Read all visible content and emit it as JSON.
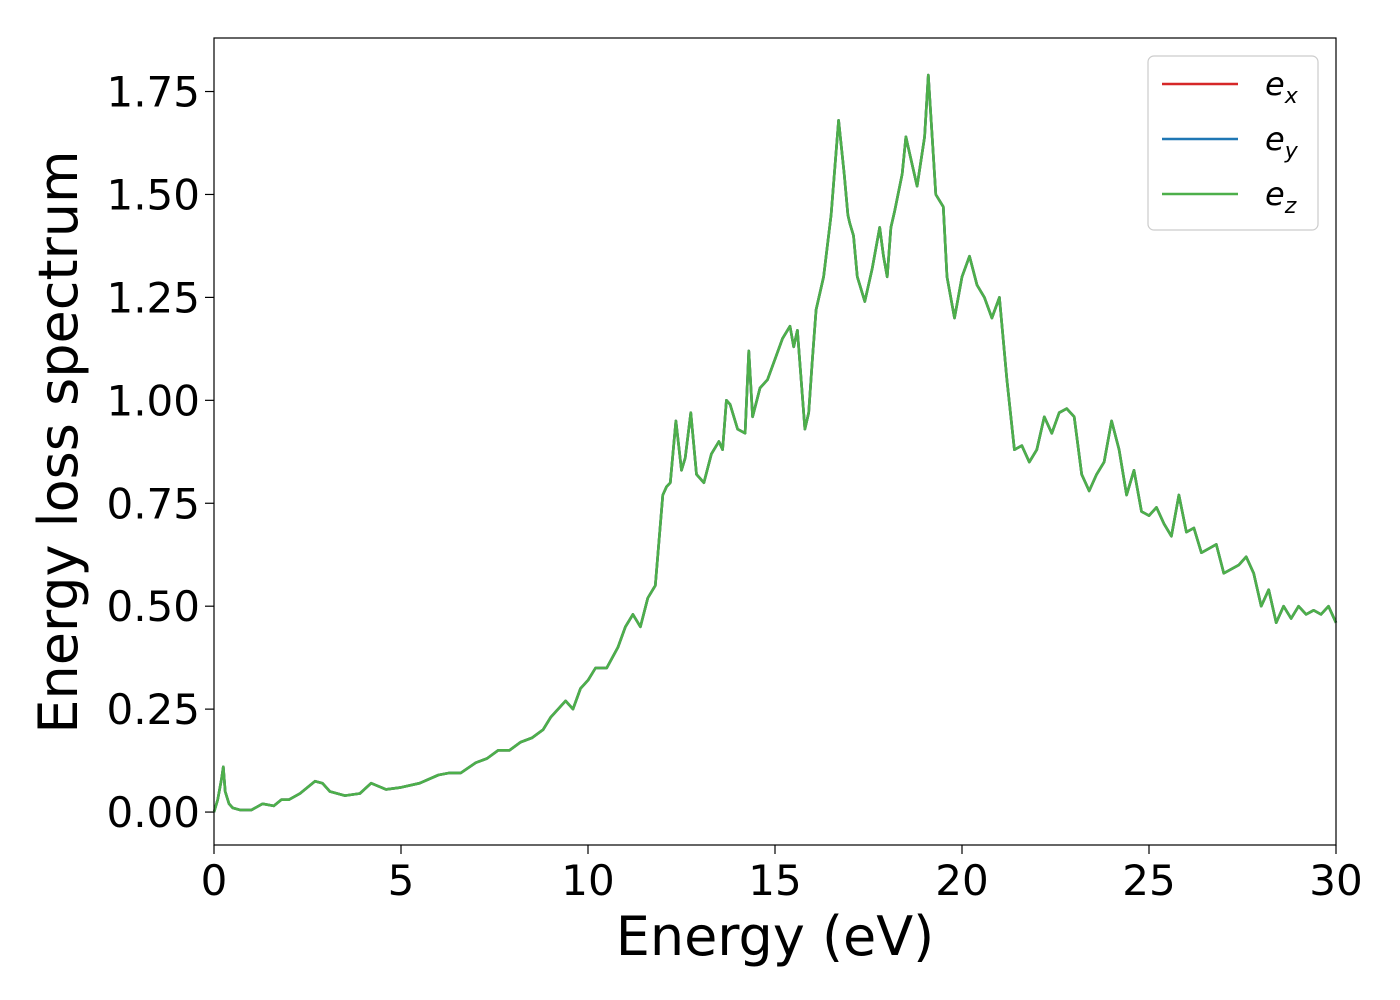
{
  "chart_data": {
    "type": "line",
    "xlabel": "Energy (eV)",
    "ylabel": "Energy loss spectrum",
    "xlim": [
      0,
      30
    ],
    "ylim": [
      -0.08,
      1.88
    ],
    "x_ticks": [
      "0",
      "5",
      "10",
      "15",
      "20",
      "25",
      "30"
    ],
    "y_ticks": [
      "0.00",
      "0.25",
      "0.50",
      "0.75",
      "1.00",
      "1.25",
      "1.50",
      "1.75"
    ],
    "grid": false,
    "legend_position": "top-right",
    "series": [
      {
        "name": "e_x",
        "label_base": "e",
        "label_sub": "x",
        "color": "#d62728"
      },
      {
        "name": "e_y",
        "label_base": "e",
        "label_sub": "y",
        "color": "#1f77b4"
      },
      {
        "name": "e_z",
        "label_base": "e",
        "label_sub": "z",
        "color": "#4daf4a"
      }
    ],
    "x": [
      0,
      0.1,
      0.2,
      0.25,
      0.3,
      0.4,
      0.5,
      0.7,
      1.0,
      1.3,
      1.6,
      1.8,
      2.0,
      2.3,
      2.5,
      2.7,
      2.9,
      3.1,
      3.5,
      3.9,
      4.2,
      4.6,
      5.0,
      5.5,
      6.0,
      6.3,
      6.6,
      7.0,
      7.3,
      7.6,
      7.9,
      8.2,
      8.5,
      8.8,
      9.0,
      9.2,
      9.4,
      9.6,
      9.8,
      10.0,
      10.2,
      10.5,
      10.8,
      11.0,
      11.2,
      11.4,
      11.6,
      11.8,
      12.0,
      12.1,
      12.2,
      12.35,
      12.5,
      12.6,
      12.75,
      12.9,
      13.1,
      13.3,
      13.5,
      13.6,
      13.7,
      13.8,
      14.0,
      14.2,
      14.3,
      14.4,
      14.6,
      14.8,
      15.0,
      15.2,
      15.4,
      15.5,
      15.6,
      15.8,
      15.9,
      16.0,
      16.1,
      16.3,
      16.5,
      16.7,
      16.85,
      16.95,
      17.0,
      17.1,
      17.2,
      17.4,
      17.6,
      17.8,
      17.9,
      18.0,
      18.1,
      18.2,
      18.4,
      18.5,
      18.6,
      18.8,
      19.0,
      19.1,
      19.3,
      19.5,
      19.6,
      19.8,
      20.0,
      20.2,
      20.4,
      20.6,
      20.8,
      21.0,
      21.2,
      21.4,
      21.6,
      21.8,
      22.0,
      22.2,
      22.4,
      22.6,
      22.8,
      23.0,
      23.2,
      23.4,
      23.6,
      23.8,
      24.0,
      24.2,
      24.4,
      24.6,
      24.8,
      25.0,
      25.2,
      25.4,
      25.6,
      25.8,
      26.0,
      26.2,
      26.4,
      26.6,
      26.8,
      27.0,
      27.2,
      27.4,
      27.6,
      27.8,
      28.0,
      28.2,
      28.4,
      28.6,
      28.8,
      29.0,
      29.2,
      29.4,
      29.6,
      29.8,
      30.0
    ],
    "values": [
      0.0,
      0.03,
      0.08,
      0.11,
      0.05,
      0.02,
      0.01,
      0.005,
      0.005,
      0.02,
      0.015,
      0.03,
      0.03,
      0.045,
      0.06,
      0.075,
      0.07,
      0.05,
      0.04,
      0.045,
      0.07,
      0.055,
      0.06,
      0.07,
      0.09,
      0.095,
      0.095,
      0.12,
      0.13,
      0.15,
      0.15,
      0.17,
      0.18,
      0.2,
      0.23,
      0.25,
      0.27,
      0.25,
      0.3,
      0.32,
      0.35,
      0.35,
      0.4,
      0.45,
      0.48,
      0.45,
      0.52,
      0.55,
      0.77,
      0.79,
      0.8,
      0.95,
      0.83,
      0.86,
      0.97,
      0.82,
      0.8,
      0.87,
      0.9,
      0.88,
      1.0,
      0.99,
      0.93,
      0.92,
      1.12,
      0.96,
      1.03,
      1.05,
      1.1,
      1.15,
      1.18,
      1.13,
      1.17,
      0.93,
      0.97,
      1.1,
      1.22,
      1.3,
      1.45,
      1.68,
      1.55,
      1.45,
      1.43,
      1.4,
      1.3,
      1.24,
      1.32,
      1.42,
      1.35,
      1.3,
      1.42,
      1.46,
      1.55,
      1.64,
      1.6,
      1.52,
      1.64,
      1.79,
      1.5,
      1.47,
      1.3,
      1.2,
      1.3,
      1.35,
      1.28,
      1.25,
      1.2,
      1.25,
      1.05,
      0.88,
      0.89,
      0.85,
      0.88,
      0.96,
      0.92,
      0.97,
      0.98,
      0.96,
      0.82,
      0.78,
      0.82,
      0.85,
      0.95,
      0.88,
      0.77,
      0.83,
      0.73,
      0.72,
      0.74,
      0.7,
      0.67,
      0.77,
      0.68,
      0.69,
      0.63,
      0.64,
      0.65,
      0.58,
      0.59,
      0.6,
      0.62,
      0.58,
      0.5,
      0.54,
      0.46,
      0.5,
      0.47,
      0.5,
      0.48,
      0.49,
      0.48,
      0.5,
      0.46
    ]
  }
}
